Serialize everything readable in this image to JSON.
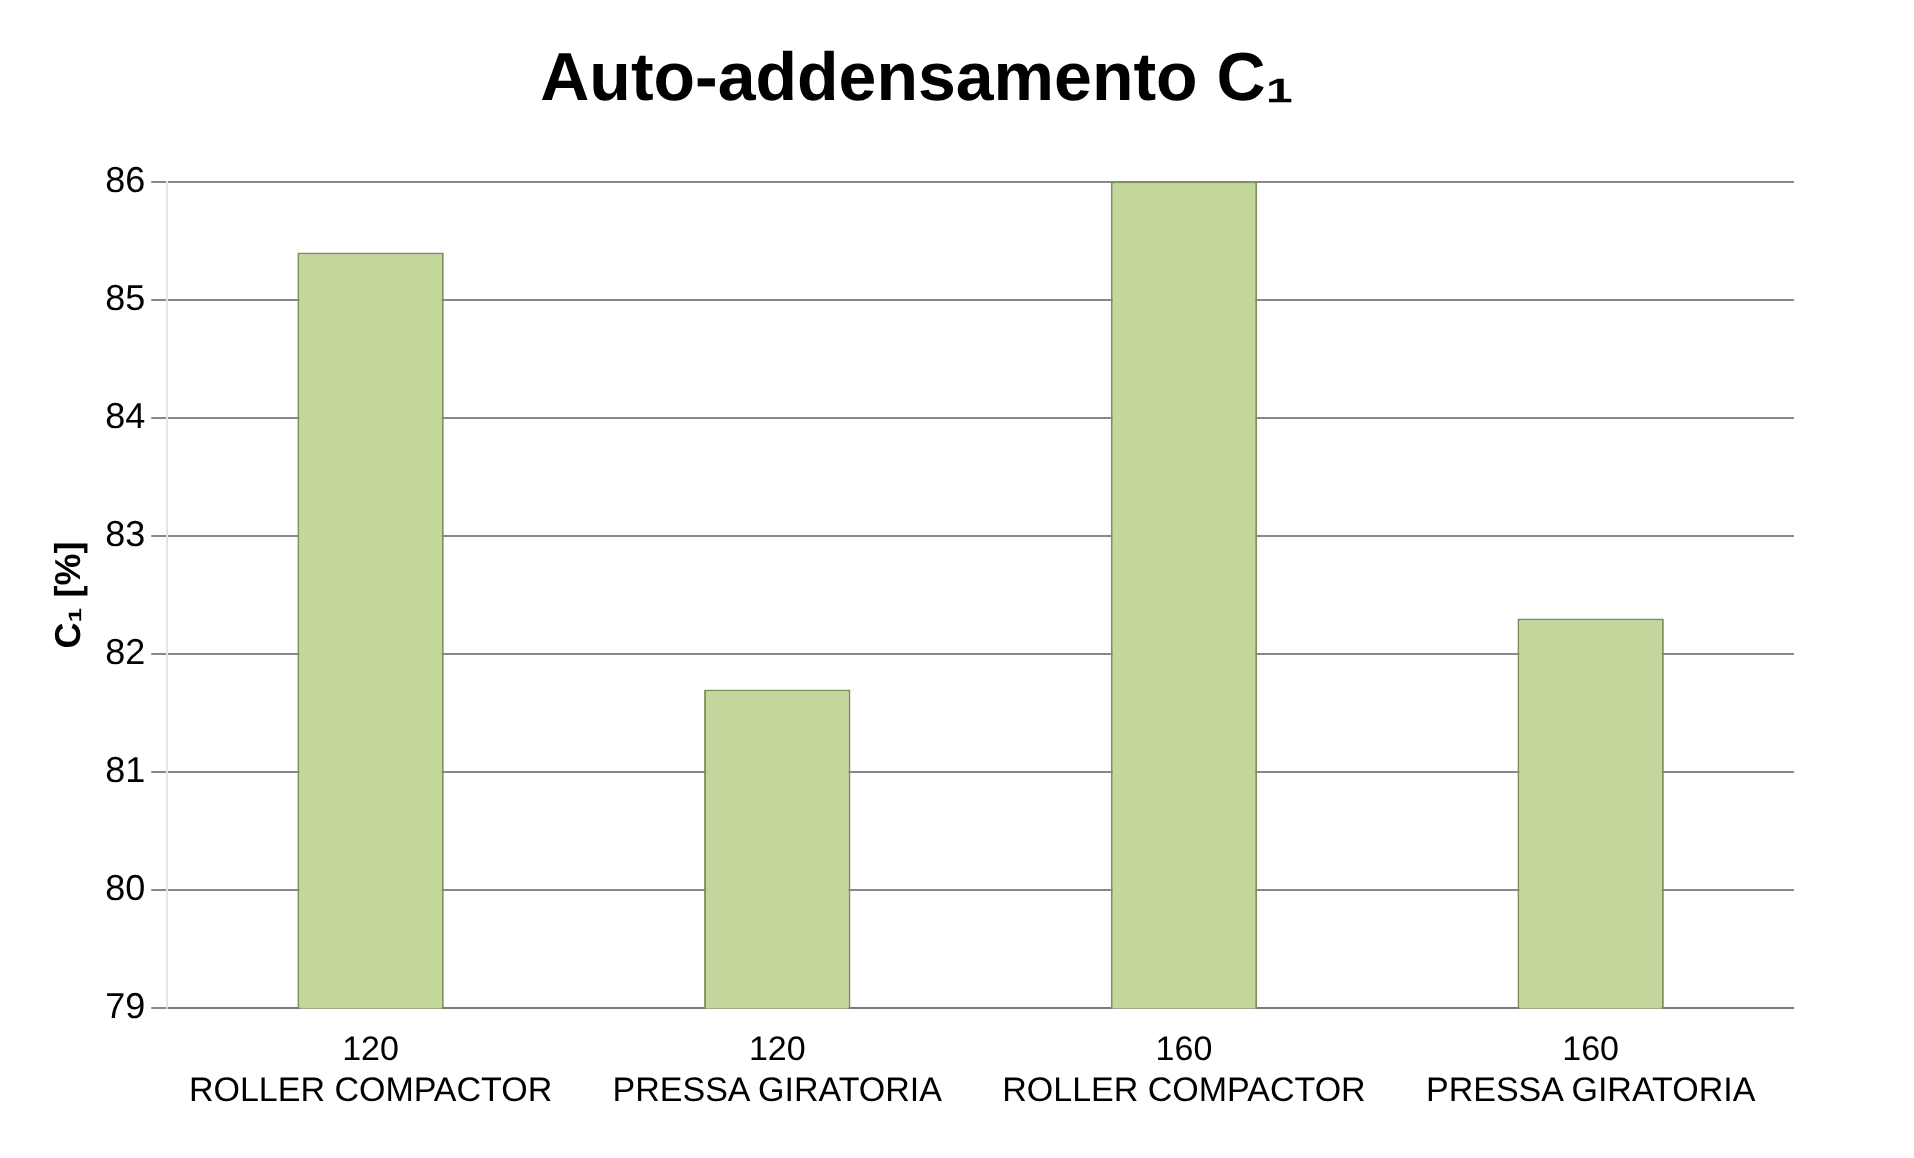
{
  "chart_data": {
    "type": "bar",
    "title": "Auto-addensamento C₁",
    "ylabel": "C₁ [%]",
    "categories": [
      "120\nROLLER COMPACTOR",
      "120\nPRESSA GIRATORIA",
      "160\nROLLER COMPACTOR",
      "160\nPRESSA GIRATORIA"
    ],
    "values": [
      85.4,
      81.7,
      86.0,
      82.3
    ],
    "color": "#c3d69b",
    "ylim": [
      79,
      86
    ],
    "yticks": [
      79,
      80,
      81,
      82,
      83,
      84,
      85,
      86
    ],
    "grid": "y",
    "legend": false
  }
}
